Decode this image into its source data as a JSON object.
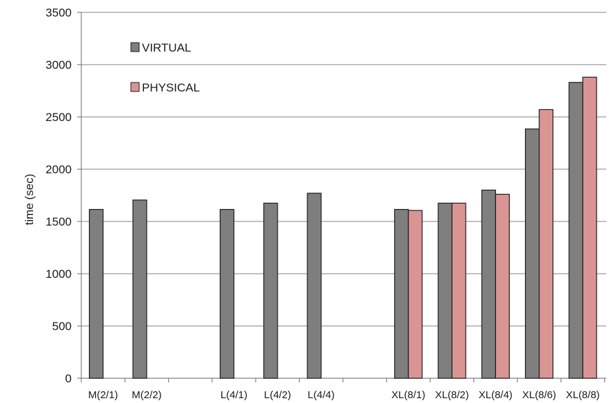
{
  "chart_data": {
    "type": "bar",
    "ylabel": "time (sec)",
    "ylim": [
      0,
      3500
    ],
    "yticks": [
      0,
      500,
      1000,
      1500,
      2000,
      2500,
      3000,
      3500
    ],
    "grid": true,
    "legend_position": "top-left",
    "categories": [
      "M(2/1)",
      "M(2/2)",
      "",
      "L(4/1)",
      "L(4/2)",
      "L(4/4)",
      "",
      "XL(8/1)",
      "XL(8/2)",
      "XL(8/4)",
      "XL(8/6)",
      "XL(8/8)"
    ],
    "series": [
      {
        "name": "VIRTUAL",
        "color": "#7f7f7f",
        "values": [
          1615,
          1705,
          null,
          1615,
          1675,
          1770,
          null,
          1615,
          1675,
          1800,
          2385,
          2830
        ]
      },
      {
        "name": "PHYSICAL",
        "color": "#d99594",
        "values": [
          null,
          null,
          null,
          null,
          null,
          null,
          null,
          1605,
          1675,
          1760,
          2570,
          2880
        ]
      }
    ]
  }
}
